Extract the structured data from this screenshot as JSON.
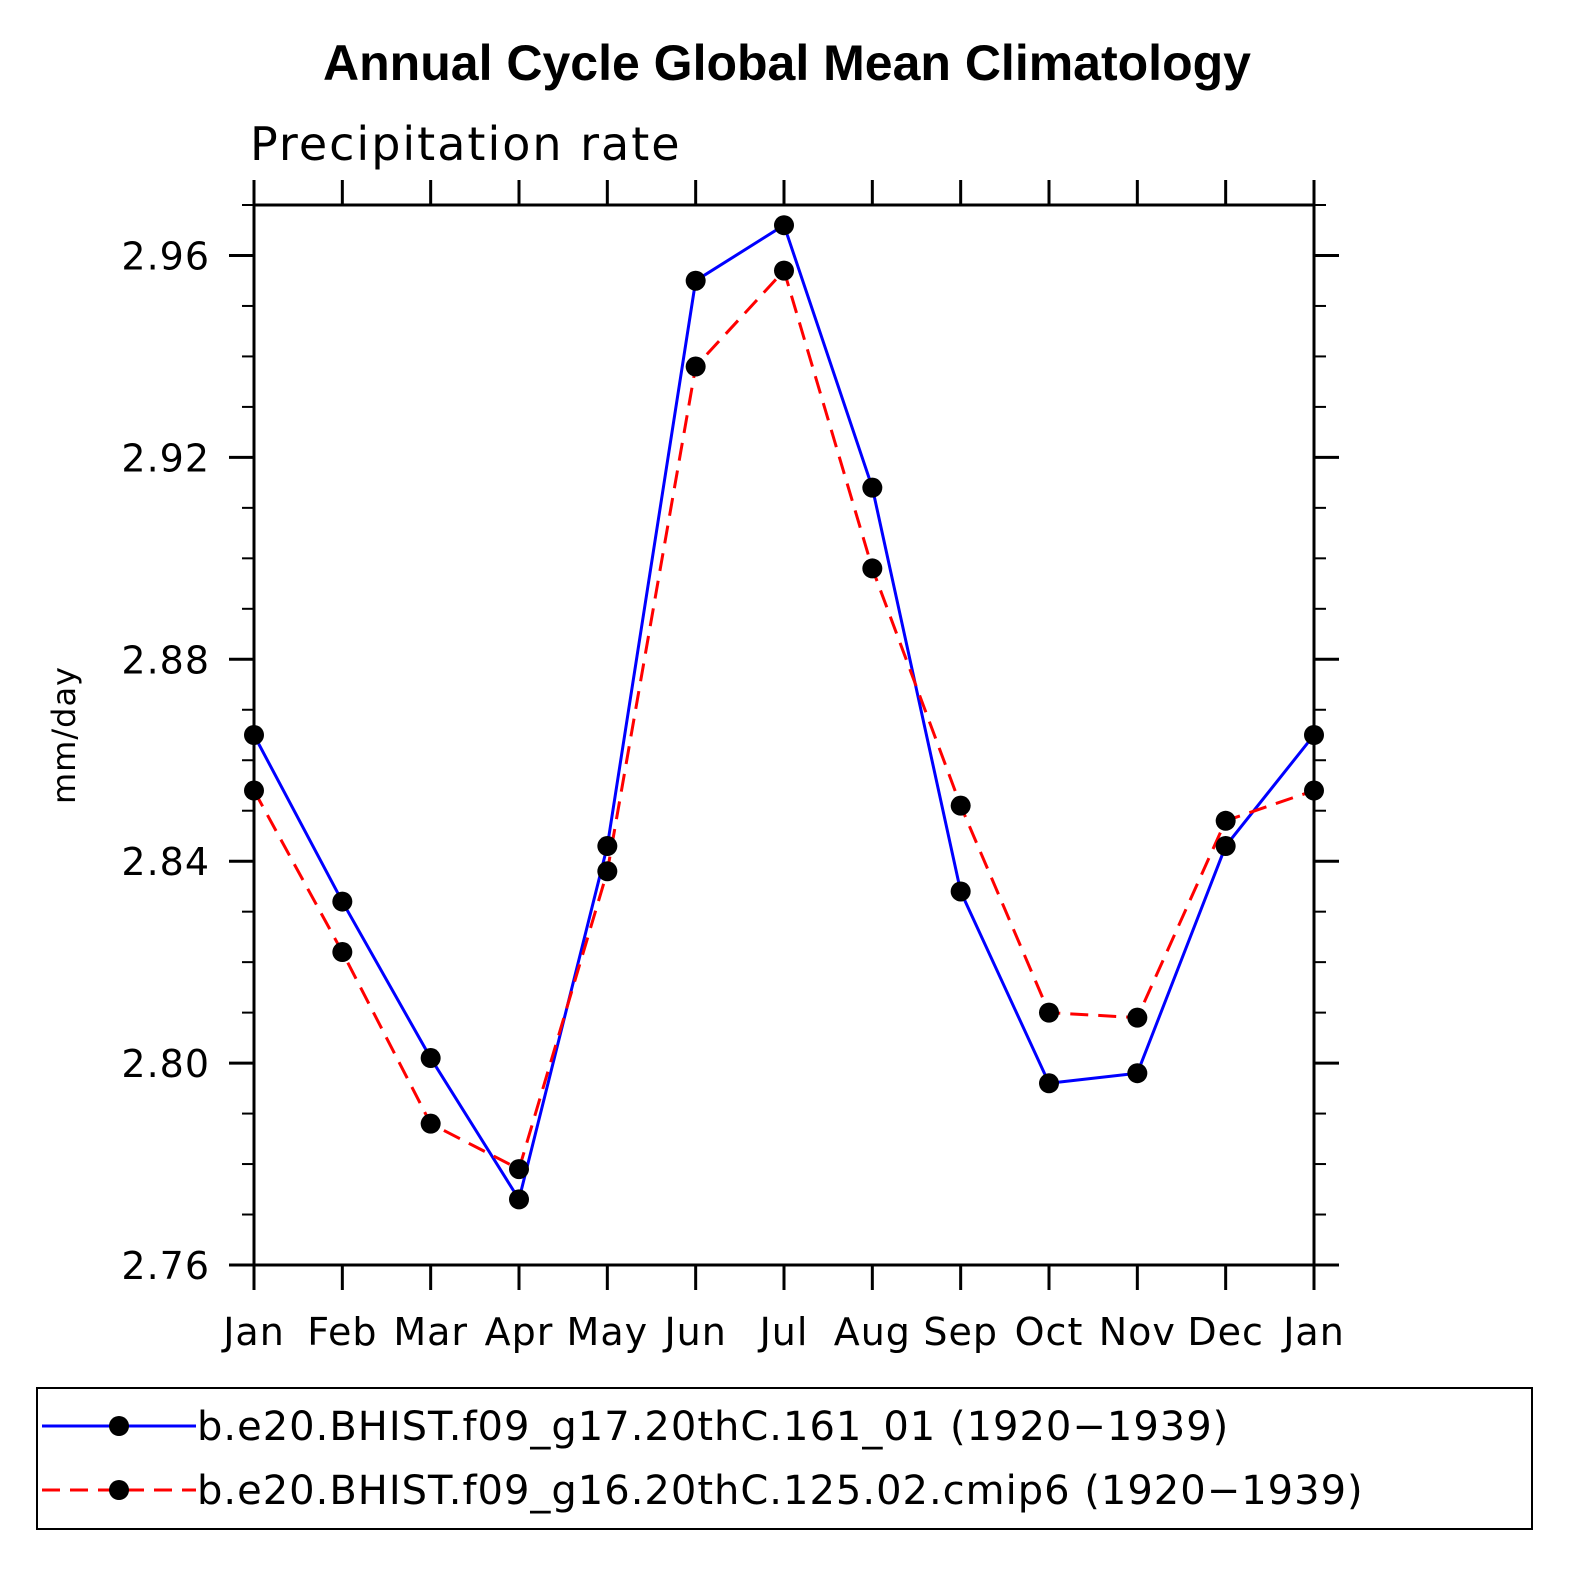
{
  "chart_data": {
    "type": "line",
    "title": "Annual Cycle Global Mean Climatology",
    "subtitle": "Precipitation rate",
    "xlabel": "",
    "ylabel": "mm/day",
    "categories": [
      "Jan",
      "Feb",
      "Mar",
      "Apr",
      "May",
      "Jun",
      "Jul",
      "Aug",
      "Sep",
      "Oct",
      "Nov",
      "Dec",
      "Jan"
    ],
    "ylim": [
      2.76,
      2.97
    ],
    "yticks": [
      "2.76",
      "2.80",
      "2.84",
      "2.88",
      "2.92",
      "2.96"
    ],
    "ytick_values": [
      2.76,
      2.8,
      2.84,
      2.88,
      2.92,
      2.96
    ],
    "y_minor_step": 0.01,
    "grid": false,
    "legend_position": "bottom",
    "series": [
      {
        "name": "b.e20.BHIST.f09_g17.20thC.161_01 (1920−1939)",
        "color": "#0000ff",
        "style": "solid",
        "marker": "circle",
        "values": [
          2.865,
          2.832,
          2.801,
          2.773,
          2.843,
          2.955,
          2.966,
          2.914,
          2.834,
          2.796,
          2.798,
          2.843,
          2.865
        ]
      },
      {
        "name": "b.e20.BHIST.f09_g16.20thC.125.02.cmip6 (1920−1939)",
        "color": "#ff0000",
        "style": "dashed",
        "marker": "circle",
        "values": [
          2.854,
          2.822,
          2.788,
          2.779,
          2.838,
          2.938,
          2.957,
          2.898,
          2.851,
          2.81,
          2.809,
          2.848,
          2.854
        ]
      }
    ]
  }
}
